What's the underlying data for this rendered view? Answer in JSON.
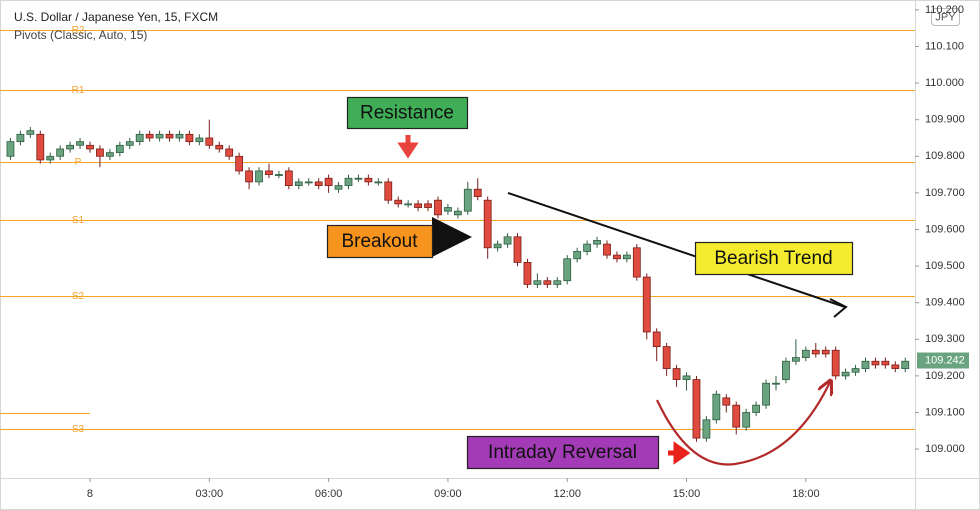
{
  "chart_data": {
    "type": "candlestick",
    "title": "U.S. Dollar / Japanese Yen, 15, FXCM",
    "subtitle": "Pivots (Classic, Auto, 15)",
    "currency": "JPY",
    "last_price": 109.242,
    "up_color": "#6aa37f",
    "down_color": "#e04b3f",
    "pivot_color": "#f5a623",
    "xlim": [
      -2.263,
      20.745
    ],
    "ylim": [
      108.921,
      110.227
    ],
    "xticks": [
      {
        "value": 0,
        "label": "8"
      },
      {
        "value": 3,
        "label": "03:00"
      },
      {
        "value": 6,
        "label": "06:00"
      },
      {
        "value": 9,
        "label": "09:00"
      },
      {
        "value": 12,
        "label": "12:00"
      },
      {
        "value": 15,
        "label": "15:00"
      },
      {
        "value": 18,
        "label": "18:00"
      }
    ],
    "yticks": [
      {
        "value": 109.0,
        "label": "109.000"
      },
      {
        "value": 109.1,
        "label": "109.100"
      },
      {
        "value": 109.2,
        "label": "109.200"
      },
      {
        "value": 109.3,
        "label": "109.300"
      },
      {
        "value": 109.4,
        "label": "109.400"
      },
      {
        "value": 109.5,
        "label": "109.500"
      },
      {
        "value": 109.6,
        "label": "109.600"
      },
      {
        "value": 109.7,
        "label": "109.700"
      },
      {
        "value": 109.8,
        "label": "109.800"
      },
      {
        "value": 109.9,
        "label": "109.900"
      },
      {
        "value": 110.0,
        "label": "110.000"
      },
      {
        "value": 110.1,
        "label": "110.100"
      },
      {
        "value": 110.2,
        "label": "110.200"
      }
    ],
    "pivots": [
      {
        "name": "R2",
        "value": 110.145
      },
      {
        "name": "R1",
        "value": 109.981
      },
      {
        "name": "P",
        "value": 109.784
      },
      {
        "name": "S1",
        "value": 109.626
      },
      {
        "name": "S2",
        "value": 109.418
      },
      {
        "name": "S3",
        "value": 109.055
      }
    ],
    "previous_level": 109.098,
    "x": [
      -2,
      -1.75,
      -1.5,
      -1.25,
      -1,
      -0.75,
      -0.5,
      -0.25,
      0,
      0.25,
      0.5,
      0.75,
      1,
      1.25,
      1.5,
      1.75,
      2,
      2.25,
      2.5,
      2.75,
      3,
      3.25,
      3.5,
      3.75,
      4,
      4.25,
      4.5,
      4.75,
      5,
      5.25,
      5.5,
      5.75,
      6,
      6.25,
      6.5,
      6.75,
      7,
      7.25,
      7.5,
      7.75,
      8,
      8.25,
      8.5,
      8.75,
      9,
      9.25,
      9.5,
      9.75,
      10,
      10.25,
      10.5,
      10.75,
      11,
      11.25,
      11.5,
      11.75,
      12,
      12.25,
      12.5,
      12.75,
      13,
      13.25,
      13.5,
      13.75,
      14,
      14.25,
      14.5,
      14.75,
      15,
      15.25,
      15.5,
      15.75,
      16,
      16.25,
      16.5,
      16.75,
      17,
      17.25,
      17.5,
      17.75,
      18,
      18.25,
      18.5,
      18.75,
      19,
      19.25,
      19.5,
      19.75,
      20,
      20.25,
      20.5
    ],
    "open": [
      109.8,
      109.84,
      109.86,
      109.86,
      109.79,
      109.8,
      109.82,
      109.83,
      109.83,
      109.82,
      109.8,
      109.81,
      109.83,
      109.84,
      109.86,
      109.85,
      109.86,
      109.85,
      109.86,
      109.84,
      109.85,
      109.83,
      109.82,
      109.8,
      109.76,
      109.73,
      109.76,
      109.75,
      109.76,
      109.72,
      109.73,
      109.73,
      109.74,
      109.71,
      109.72,
      109.74,
      109.74,
      109.73,
      109.73,
      109.68,
      109.67,
      109.67,
      109.67,
      109.68,
      109.65,
      109.64,
      109.65,
      109.71,
      109.68,
      109.55,
      109.56,
      109.58,
      109.51,
      109.45,
      109.46,
      109.45,
      109.46,
      109.52,
      109.54,
      109.56,
      109.56,
      109.53,
      109.52,
      109.55,
      109.47,
      109.32,
      109.28,
      109.22,
      109.19,
      109.19,
      109.03,
      109.08,
      109.14,
      109.12,
      109.06,
      109.1,
      109.12,
      109.18,
      109.19,
      109.24,
      109.25,
      109.27,
      109.27,
      109.27,
      109.2,
      109.21,
      109.22,
      109.24,
      109.24,
      109.23,
      109.22
    ],
    "high": [
      109.85,
      109.87,
      109.88,
      109.87,
      109.81,
      109.83,
      109.84,
      109.85,
      109.84,
      109.83,
      109.82,
      109.84,
      109.85,
      109.87,
      109.87,
      109.87,
      109.87,
      109.87,
      109.87,
      109.86,
      109.9,
      109.84,
      109.83,
      109.81,
      109.77,
      109.77,
      109.78,
      109.76,
      109.77,
      109.74,
      109.74,
      109.74,
      109.75,
      109.73,
      109.75,
      109.75,
      109.75,
      109.74,
      109.74,
      109.69,
      109.68,
      109.68,
      109.68,
      109.69,
      109.67,
      109.66,
      109.73,
      109.74,
      109.69,
      109.57,
      109.59,
      109.59,
      109.52,
      109.48,
      109.47,
      109.47,
      109.53,
      109.55,
      109.57,
      109.58,
      109.57,
      109.54,
      109.54,
      109.56,
      109.48,
      109.33,
      109.29,
      109.23,
      109.21,
      109.2,
      109.09,
      109.16,
      109.15,
      109.13,
      109.11,
      109.13,
      109.19,
      109.2,
      109.25,
      109.3,
      109.28,
      109.29,
      109.28,
      109.28,
      109.22,
      109.23,
      109.25,
      109.25,
      109.25,
      109.24,
      109.25
    ],
    "low": [
      109.79,
      109.83,
      109.85,
      109.78,
      109.78,
      109.79,
      109.81,
      109.82,
      109.81,
      109.77,
      109.79,
      109.8,
      109.82,
      109.83,
      109.84,
      109.84,
      109.84,
      109.84,
      109.83,
      109.83,
      109.82,
      109.81,
      109.79,
      109.75,
      109.71,
      109.72,
      109.74,
      109.74,
      109.71,
      109.71,
      109.72,
      109.71,
      109.7,
      109.7,
      109.71,
      109.73,
      109.72,
      109.72,
      109.67,
      109.66,
      109.66,
      109.65,
      109.65,
      109.63,
      109.64,
      109.63,
      109.64,
      109.68,
      109.52,
      109.54,
      109.55,
      109.5,
      109.44,
      109.44,
      109.44,
      109.44,
      109.45,
      109.51,
      109.53,
      109.55,
      109.52,
      109.51,
      109.51,
      109.46,
      109.3,
      109.24,
      109.2,
      109.17,
      109.16,
      109.02,
      109.02,
      109.07,
      109.1,
      109.04,
      109.05,
      109.09,
      109.11,
      109.16,
      109.18,
      109.23,
      109.24,
      109.25,
      109.25,
      109.19,
      109.19,
      109.2,
      109.21,
      109.22,
      109.22,
      109.21,
      109.21
    ],
    "close": [
      109.84,
      109.86,
      109.87,
      109.79,
      109.8,
      109.82,
      109.83,
      109.84,
      109.82,
      109.8,
      109.81,
      109.83,
      109.84,
      109.86,
      109.85,
      109.86,
      109.85,
      109.86,
      109.84,
      109.85,
      109.83,
      109.82,
      109.8,
      109.76,
      109.73,
      109.76,
      109.75,
      109.75,
      109.72,
      109.73,
      109.73,
      109.72,
      109.72,
      109.72,
      109.74,
      109.74,
      109.73,
      109.73,
      109.68,
      109.67,
      109.67,
      109.66,
      109.66,
      109.64,
      109.66,
      109.65,
      109.71,
      109.69,
      109.55,
      109.56,
      109.58,
      109.51,
      109.45,
      109.46,
      109.45,
      109.46,
      109.52,
      109.54,
      109.56,
      109.57,
      109.53,
      109.52,
      109.53,
      109.47,
      109.32,
      109.28,
      109.22,
      109.19,
      109.2,
      109.03,
      109.08,
      109.15,
      109.12,
      109.06,
      109.1,
      109.12,
      109.18,
      109.18,
      109.24,
      109.25,
      109.27,
      109.26,
      109.26,
      109.2,
      109.21,
      109.22,
      109.24,
      109.23,
      109.23,
      109.22,
      109.24
    ],
    "annotations": [
      {
        "text": "Resistance",
        "color": "#3fae57"
      },
      {
        "text": "Breakout",
        "color": "#f7941d"
      },
      {
        "text": "Bearish Trend",
        "color": "#f5ec2f"
      },
      {
        "text": "Intraday Reversal",
        "color": "#a23bb5"
      }
    ]
  }
}
